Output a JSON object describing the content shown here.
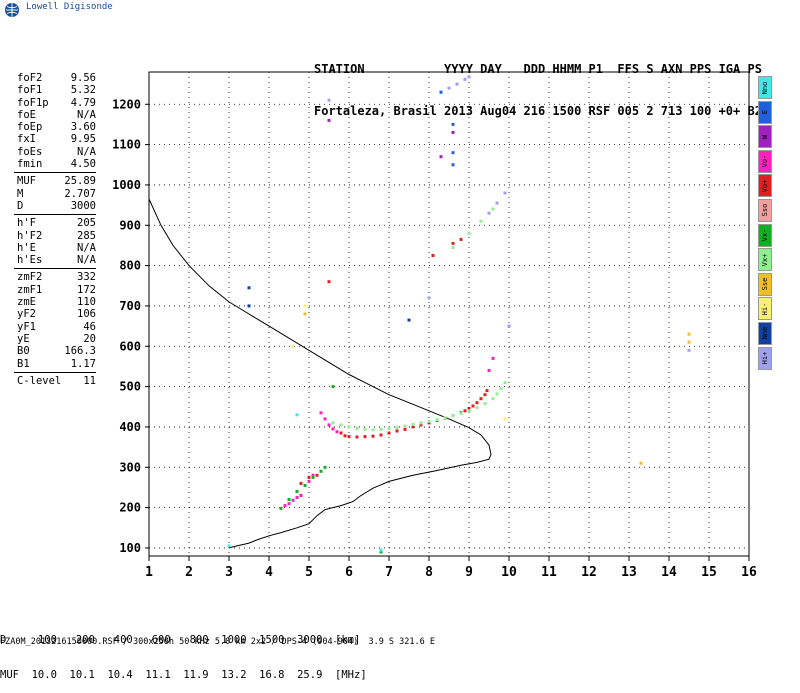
{
  "logo": {
    "text": "Lowell Digisonde"
  },
  "header": {
    "line1": "STATION           YYYY DAY   DDD HHMM P1  FFS S AXN PPS IGA PS",
    "line2": "Fortaleza, Brasil 2013 Aug04 216 1500 RSF 005 2 713 100 +0+ B2"
  },
  "params": {
    "group1": [
      {
        "label": "foF2",
        "value": "9.56"
      },
      {
        "label": "foF1",
        "value": "5.32"
      },
      {
        "label": "foF1p",
        "value": "4.79"
      },
      {
        "label": "foE",
        "value": "N/A"
      },
      {
        "label": "foEp",
        "value": "3.60"
      },
      {
        "label": "fxI",
        "value": "9.95"
      },
      {
        "label": "foEs",
        "value": "N/A"
      },
      {
        "label": "fmin",
        "value": "4.50"
      }
    ],
    "group2": [
      {
        "label": "MUF",
        "value": "25.89"
      },
      {
        "label": "M",
        "value": "2.707"
      },
      {
        "label": "D",
        "value": "3000"
      }
    ],
    "group3": [
      {
        "label": "h'F",
        "value": "205"
      },
      {
        "label": "h'F2",
        "value": "285"
      },
      {
        "label": "h'E",
        "value": "N/A"
      },
      {
        "label": "h'Es",
        "value": "N/A"
      }
    ],
    "group4": [
      {
        "label": "zmF2",
        "value": "332"
      },
      {
        "label": "zmF1",
        "value": "172"
      },
      {
        "label": "zmE",
        "value": "110"
      },
      {
        "label": "yF2",
        "value": "106"
      },
      {
        "label": "yF1",
        "value": "46"
      },
      {
        "label": "yE",
        "value": "20"
      },
      {
        "label": "B0",
        "value": "166.3"
      },
      {
        "label": "B1",
        "value": "1.17"
      }
    ],
    "group5": [
      {
        "label": "C-level",
        "value": "11"
      }
    ]
  },
  "legend": [
    {
      "label": "Nno",
      "color": "#40e8e8"
    },
    {
      "label": "E",
      "color": "#2060e0"
    },
    {
      "label": "W",
      "color": "#a020c0"
    },
    {
      "label": "Vo-",
      "color": "#ff20c0"
    },
    {
      "label": "Vo+",
      "color": "#e02020"
    },
    {
      "label": "Sso",
      "color": "#f0a0a0"
    },
    {
      "label": "Vx-",
      "color": "#10b020"
    },
    {
      "label": "Vx+",
      "color": "#90f090"
    },
    {
      "label": "Sse",
      "color": "#f0c020"
    },
    {
      "label": "Hi-",
      "color": "#f8f070"
    },
    {
      "label": "Nne",
      "color": "#1040a0"
    },
    {
      "label": "Hi+",
      "color": "#a0a0f0"
    }
  ],
  "muf_table": {
    "line1": "D     100   200   400   600   800  1000  1500  3000  [km]",
    "line2": "MUF  10.0  10.1  10.4  11.1  11.9  13.2  16.8  25.9  [MHz]"
  },
  "footer": "FZA0M_2013216150000.RSF / 300x256h 50 kHz 5.0 km 2x2 / DPS-4 (904-904)  3.9 S 321.6 E",
  "chart_data": {
    "type": "scatter",
    "xlim": [
      1,
      16
    ],
    "ylim": [
      80,
      1280
    ],
    "x_ticks": [
      1,
      2,
      3,
      4,
      5,
      6,
      7,
      8,
      9,
      10,
      11,
      12,
      13,
      14,
      15,
      16
    ],
    "y_ticks": [
      100,
      200,
      300,
      400,
      500,
      600,
      700,
      800,
      900,
      1000,
      1100,
      1200
    ],
    "grid": true,
    "profile_curve": [
      [
        1.0,
        965
      ],
      [
        1.3,
        900
      ],
      [
        1.6,
        850
      ],
      [
        2.0,
        800
      ],
      [
        2.5,
        750
      ],
      [
        3.0,
        710
      ],
      [
        3.5,
        680
      ],
      [
        4.0,
        650
      ],
      [
        4.5,
        620
      ],
      [
        5.0,
        590
      ],
      [
        5.5,
        560
      ],
      [
        6.0,
        530
      ],
      [
        6.5,
        505
      ],
      [
        7.0,
        480
      ],
      [
        7.5,
        460
      ],
      [
        8.0,
        440
      ],
      [
        8.5,
        420
      ],
      [
        9.0,
        398
      ],
      [
        9.3,
        380
      ],
      [
        9.5,
        355
      ],
      [
        9.55,
        332
      ],
      [
        9.5,
        320
      ],
      [
        9.2,
        312
      ],
      [
        8.8,
        305
      ],
      [
        8.2,
        292
      ],
      [
        7.6,
        280
      ],
      [
        7.0,
        265
      ],
      [
        6.6,
        248
      ],
      [
        6.3,
        230
      ],
      [
        6.1,
        215
      ],
      [
        5.8,
        205
      ],
      [
        5.4,
        195
      ],
      [
        5.2,
        180
      ],
      [
        5.0,
        160
      ],
      [
        4.7,
        150
      ],
      [
        4.3,
        138
      ],
      [
        4.0,
        130
      ],
      [
        3.7,
        120
      ],
      [
        3.5,
        112
      ],
      [
        3.2,
        105
      ],
      [
        3.0,
        100
      ]
    ],
    "series": [
      {
        "name": "Vo+",
        "color": "#e02020",
        "points": [
          [
            5.8,
            385
          ],
          [
            5.9,
            378
          ],
          [
            6.0,
            376
          ],
          [
            6.2,
            375
          ],
          [
            6.4,
            376
          ],
          [
            6.6,
            377
          ],
          [
            6.8,
            380
          ],
          [
            7.0,
            385
          ],
          [
            7.2,
            390
          ],
          [
            7.4,
            394
          ],
          [
            7.6,
            400
          ],
          [
            7.8,
            405
          ],
          [
            8.0,
            410
          ],
          [
            8.2,
            416
          ],
          [
            8.4,
            422
          ],
          [
            8.6,
            428
          ],
          [
            8.8,
            435
          ],
          [
            8.9,
            440
          ],
          [
            9.0,
            446
          ],
          [
            9.1,
            452
          ],
          [
            9.2,
            460
          ],
          [
            9.3,
            470
          ],
          [
            9.4,
            480
          ],
          [
            9.45,
            490
          ],
          [
            8.1,
            825
          ],
          [
            8.6,
            855
          ],
          [
            8.8,
            865
          ],
          [
            5.5,
            760
          ],
          [
            5.2,
            280
          ],
          [
            5.0,
            275
          ],
          [
            4.8,
            260
          ]
        ]
      },
      {
        "name": "Vo-",
        "color": "#ff20c0",
        "points": [
          [
            5.3,
            435
          ],
          [
            5.4,
            420
          ],
          [
            5.5,
            405
          ],
          [
            5.6,
            395
          ],
          [
            5.7,
            388
          ],
          [
            4.4,
            205
          ],
          [
            4.5,
            210
          ],
          [
            4.6,
            218
          ],
          [
            4.7,
            225
          ],
          [
            4.8,
            230
          ],
          [
            5.0,
            265
          ],
          [
            5.1,
            280
          ],
          [
            9.5,
            540
          ],
          [
            9.6,
            570
          ]
        ]
      },
      {
        "name": "Vx+",
        "color": "#90f090",
        "points": [
          [
            5.6,
            410
          ],
          [
            5.8,
            405
          ],
          [
            6.0,
            400
          ],
          [
            6.2,
            396
          ],
          [
            6.4,
            394
          ],
          [
            6.6,
            393
          ],
          [
            6.8,
            394
          ],
          [
            7.0,
            396
          ],
          [
            7.2,
            398
          ],
          [
            7.4,
            402
          ],
          [
            7.6,
            406
          ],
          [
            7.8,
            410
          ],
          [
            8.0,
            414
          ],
          [
            8.2,
            418
          ],
          [
            8.4,
            423
          ],
          [
            8.6,
            428
          ],
          [
            8.8,
            433
          ],
          [
            9.0,
            440
          ],
          [
            9.2,
            448
          ],
          [
            9.4,
            458
          ],
          [
            9.6,
            470
          ],
          [
            9.7,
            482
          ],
          [
            9.8,
            495
          ],
          [
            9.9,
            510
          ],
          [
            8.6,
            845
          ],
          [
            9.0,
            880
          ],
          [
            9.3,
            910
          ],
          [
            9.6,
            940
          ]
        ]
      },
      {
        "name": "Vx-",
        "color": "#10b020",
        "points": [
          [
            4.5,
            220
          ],
          [
            4.7,
            240
          ],
          [
            4.9,
            255
          ],
          [
            5.1,
            275
          ],
          [
            5.3,
            290
          ],
          [
            5.4,
            300
          ],
          [
            5.6,
            500
          ],
          [
            4.3,
            198
          ],
          [
            6.8,
            90
          ]
        ]
      },
      {
        "name": "Hi+",
        "color": "#a0a0f0",
        "points": [
          [
            8.3,
            1230
          ],
          [
            8.5,
            1240
          ],
          [
            8.7,
            1250
          ],
          [
            8.9,
            1262
          ],
          [
            9.0,
            1268
          ],
          [
            9.5,
            930
          ],
          [
            9.7,
            955
          ],
          [
            9.9,
            980
          ],
          [
            8.0,
            720
          ],
          [
            10.0,
            650
          ],
          [
            14.5,
            590
          ],
          [
            5.5,
            1210
          ]
        ]
      },
      {
        "name": "E",
        "color": "#2060e0",
        "points": [
          [
            8.6,
            1150
          ],
          [
            8.6,
            1080
          ],
          [
            8.6,
            1050
          ],
          [
            8.3,
            1230
          ]
        ]
      },
      {
        "name": "W",
        "color": "#a020c0",
        "points": [
          [
            5.5,
            1160
          ],
          [
            8.6,
            1130
          ],
          [
            8.3,
            1070
          ]
        ]
      },
      {
        "name": "Sse",
        "color": "#f0c020",
        "points": [
          [
            14.5,
            610
          ],
          [
            14.5,
            630
          ],
          [
            13.3,
            310
          ],
          [
            4.9,
            680
          ]
        ]
      },
      {
        "name": "Hi-",
        "color": "#f8f070",
        "points": [
          [
            4.6,
            600
          ],
          [
            4.9,
            700
          ],
          [
            9.9,
            420
          ]
        ]
      },
      {
        "name": "Nno",
        "color": "#40e8e8",
        "points": [
          [
            3.0,
            105
          ],
          [
            6.8,
            95
          ],
          [
            4.7,
            430
          ]
        ]
      },
      {
        "name": "Nne",
        "color": "#1040a0",
        "points": [
          [
            3.5,
            700
          ],
          [
            7.5,
            665
          ],
          [
            3.5,
            745
          ]
        ]
      }
    ]
  }
}
